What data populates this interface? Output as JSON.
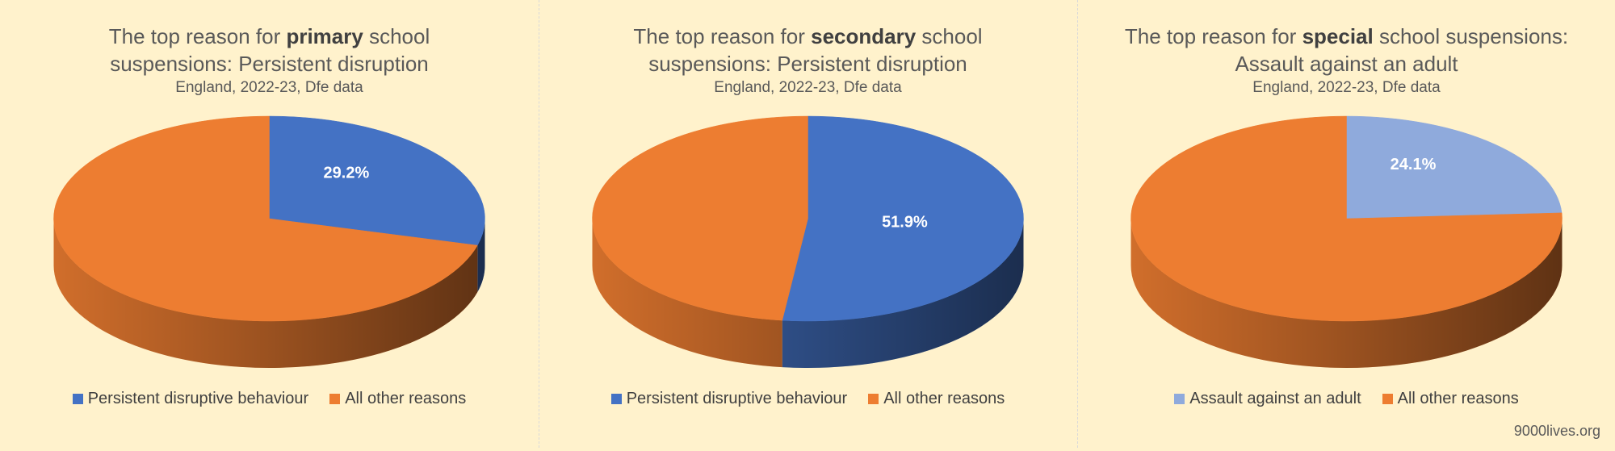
{
  "chart_data": [
    {
      "type": "pie",
      "title_lines": [
        [
          "The top reason for ",
          "primary",
          " school"
        ],
        [
          "suspensions: Persistent disruption"
        ]
      ],
      "subtitle": "England, 2022-23, Dfe data",
      "categories": [
        "Persistent disruptive behaviour",
        "All other reasons"
      ],
      "values": [
        29.2,
        70.8
      ],
      "value_labels": [
        "29.2%",
        null
      ],
      "colors": [
        "#4472c4",
        "#ed7d31"
      ]
    },
    {
      "type": "pie",
      "title_lines": [
        [
          "The top reason for ",
          "secondary",
          " school"
        ],
        [
          "suspensions: Persistent disruption"
        ]
      ],
      "subtitle": "England, 2022-23, Dfe data",
      "categories": [
        "Persistent disruptive behaviour",
        "All other reasons"
      ],
      "values": [
        51.9,
        48.1
      ],
      "value_labels": [
        "51.9%",
        null
      ],
      "colors": [
        "#4472c4",
        "#ed7d31"
      ]
    },
    {
      "type": "pie",
      "title_lines": [
        [
          "The top reason for ",
          "special",
          " school suspensions:"
        ],
        [
          "Assault against an adult"
        ]
      ],
      "subtitle": "England, 2022-23, Dfe data",
      "categories": [
        "Assault against an adult",
        "All other reasons"
      ],
      "values": [
        24.1,
        75.9
      ],
      "value_labels": [
        "24.1%",
        null
      ],
      "colors": [
        "#8faadc",
        "#ed7d31"
      ]
    }
  ],
  "footer": "9000lives.org"
}
